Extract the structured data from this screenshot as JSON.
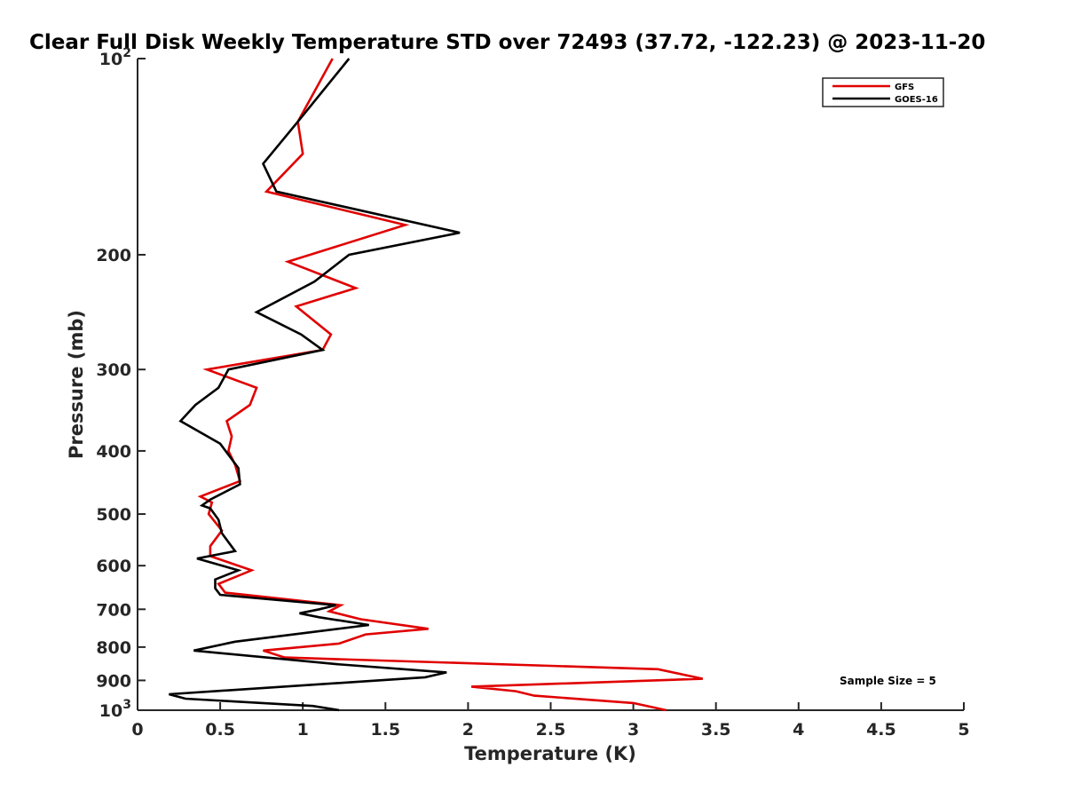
{
  "chart_data": {
    "type": "line",
    "title": "Clear Full Disk Weekly Temperature STD over 72493 (37.72, -122.23) @ 2023-11-20",
    "xlabel": "Temperature (K)",
    "ylabel": "Pressure (mb)",
    "xlim": [
      0,
      5
    ],
    "ylim": [
      100,
      1000
    ],
    "y_scale": "log",
    "y_reversed": true,
    "x_ticks": [
      "0",
      "0.5",
      "1",
      "1.5",
      "2",
      "2.5",
      "3",
      "3.5",
      "4",
      "4.5",
      "5"
    ],
    "y_ticks": [
      {
        "value": 100,
        "base": "10",
        "exp": "2"
      },
      {
        "value": 200,
        "label": "200"
      },
      {
        "value": 300,
        "label": "300"
      },
      {
        "value": 400,
        "label": "400"
      },
      {
        "value": 500,
        "label": "500"
      },
      {
        "value": 600,
        "label": "600"
      },
      {
        "value": 700,
        "label": "700"
      },
      {
        "value": 800,
        "label": "800"
      },
      {
        "value": 900,
        "label": "900"
      },
      {
        "value": 1000,
        "base": "10",
        "exp": "3"
      }
    ],
    "grid": false,
    "legend_position": "top-right",
    "annotation": "Sample Size = 5",
    "series": [
      {
        "name": "GFS",
        "color": "#e00000",
        "points": [
          [
            1.18,
            100
          ],
          [
            0.97,
            125
          ],
          [
            1.0,
            140
          ],
          [
            0.78,
            160
          ],
          [
            1.62,
            180
          ],
          [
            0.91,
            205
          ],
          [
            1.32,
            225
          ],
          [
            0.96,
            240
          ],
          [
            1.17,
            265
          ],
          [
            1.12,
            280
          ],
          [
            0.42,
            300
          ],
          [
            0.72,
            320
          ],
          [
            0.68,
            340
          ],
          [
            0.54,
            360
          ],
          [
            0.57,
            380
          ],
          [
            0.55,
            400
          ],
          [
            0.59,
            420
          ],
          [
            0.62,
            445
          ],
          [
            0.38,
            470
          ],
          [
            0.45,
            480
          ],
          [
            0.43,
            500
          ],
          [
            0.51,
            530
          ],
          [
            0.44,
            560
          ],
          [
            0.44,
            580
          ],
          [
            0.69,
            610
          ],
          [
            0.49,
            640
          ],
          [
            0.53,
            660
          ],
          [
            1.23,
            690
          ],
          [
            1.16,
            705
          ],
          [
            1.35,
            725
          ],
          [
            1.76,
            750
          ],
          [
            1.38,
            765
          ],
          [
            1.22,
            790
          ],
          [
            0.76,
            810
          ],
          [
            0.89,
            830
          ],
          [
            3.15,
            865
          ],
          [
            3.42,
            895
          ],
          [
            2.02,
            920
          ],
          [
            2.29,
            935
          ],
          [
            2.4,
            950
          ],
          [
            3.0,
            975
          ],
          [
            3.2,
            1000
          ]
        ]
      },
      {
        "name": "GOES-16",
        "color": "#000000",
        "points": [
          [
            1.28,
            100
          ],
          [
            0.97,
            125
          ],
          [
            0.76,
            145
          ],
          [
            0.84,
            160
          ],
          [
            1.95,
            185
          ],
          [
            1.28,
            200
          ],
          [
            1.07,
            220
          ],
          [
            0.72,
            245
          ],
          [
            0.99,
            265
          ],
          [
            1.12,
            280
          ],
          [
            0.55,
            300
          ],
          [
            0.49,
            320
          ],
          [
            0.35,
            340
          ],
          [
            0.26,
            360
          ],
          [
            0.5,
            390
          ],
          [
            0.61,
            425
          ],
          [
            0.62,
            450
          ],
          [
            0.44,
            475
          ],
          [
            0.39,
            485
          ],
          [
            0.44,
            490
          ],
          [
            0.49,
            510
          ],
          [
            0.51,
            535
          ],
          [
            0.59,
            570
          ],
          [
            0.36,
            585
          ],
          [
            0.61,
            610
          ],
          [
            0.47,
            630
          ],
          [
            0.47,
            650
          ],
          [
            0.5,
            665
          ],
          [
            1.2,
            690
          ],
          [
            1.1,
            700
          ],
          [
            0.98,
            710
          ],
          [
            1.1,
            720
          ],
          [
            1.4,
            740
          ],
          [
            0.59,
            785
          ],
          [
            0.34,
            810
          ],
          [
            1.21,
            850
          ],
          [
            1.87,
            875
          ],
          [
            1.74,
            890
          ],
          [
            0.19,
            945
          ],
          [
            0.29,
            960
          ],
          [
            1.06,
            985
          ],
          [
            1.22,
            1000
          ]
        ]
      }
    ]
  }
}
